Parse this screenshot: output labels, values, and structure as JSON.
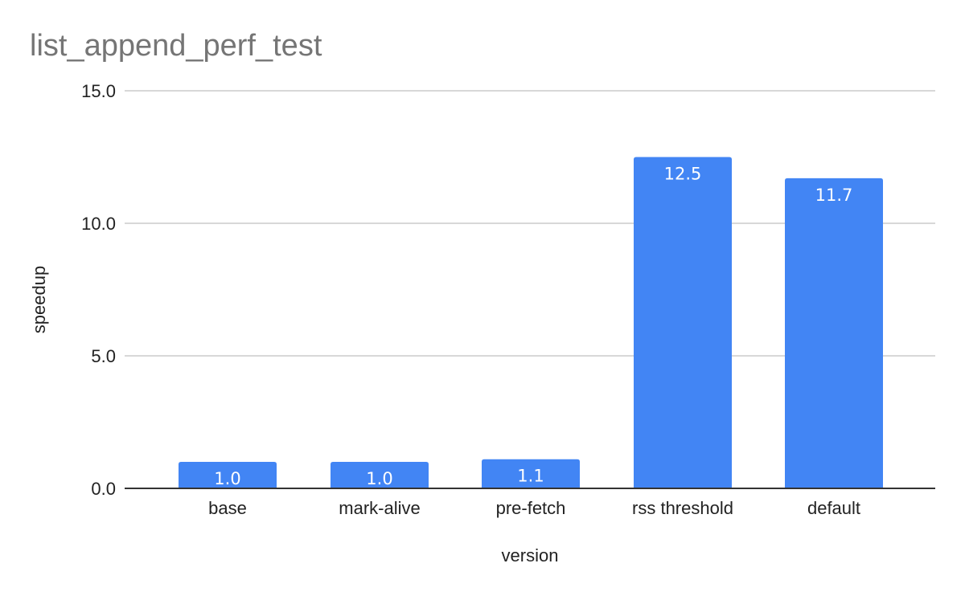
{
  "chart_data": {
    "type": "bar",
    "title": "list_append_perf_test",
    "xlabel": "version",
    "ylabel": "speedup",
    "categories": [
      "base",
      "mark-alive",
      "pre-fetch",
      "rss threshold",
      "default"
    ],
    "values": [
      1.0,
      1.0,
      1.1,
      12.5,
      11.7
    ],
    "data_labels": [
      "1.0",
      "1.0",
      "1.1",
      "12.5",
      "11.7"
    ],
    "ylim": [
      0,
      15
    ],
    "yticks": [
      0,
      5,
      10,
      15
    ],
    "ytick_labels": [
      "0.0",
      "5.0",
      "10.0",
      "15.0"
    ],
    "grid": true,
    "legend": "none",
    "colors": {
      "bar": "#4285f4",
      "title": "#757575",
      "grid": "#cccccc",
      "baseline": "#333333"
    }
  }
}
